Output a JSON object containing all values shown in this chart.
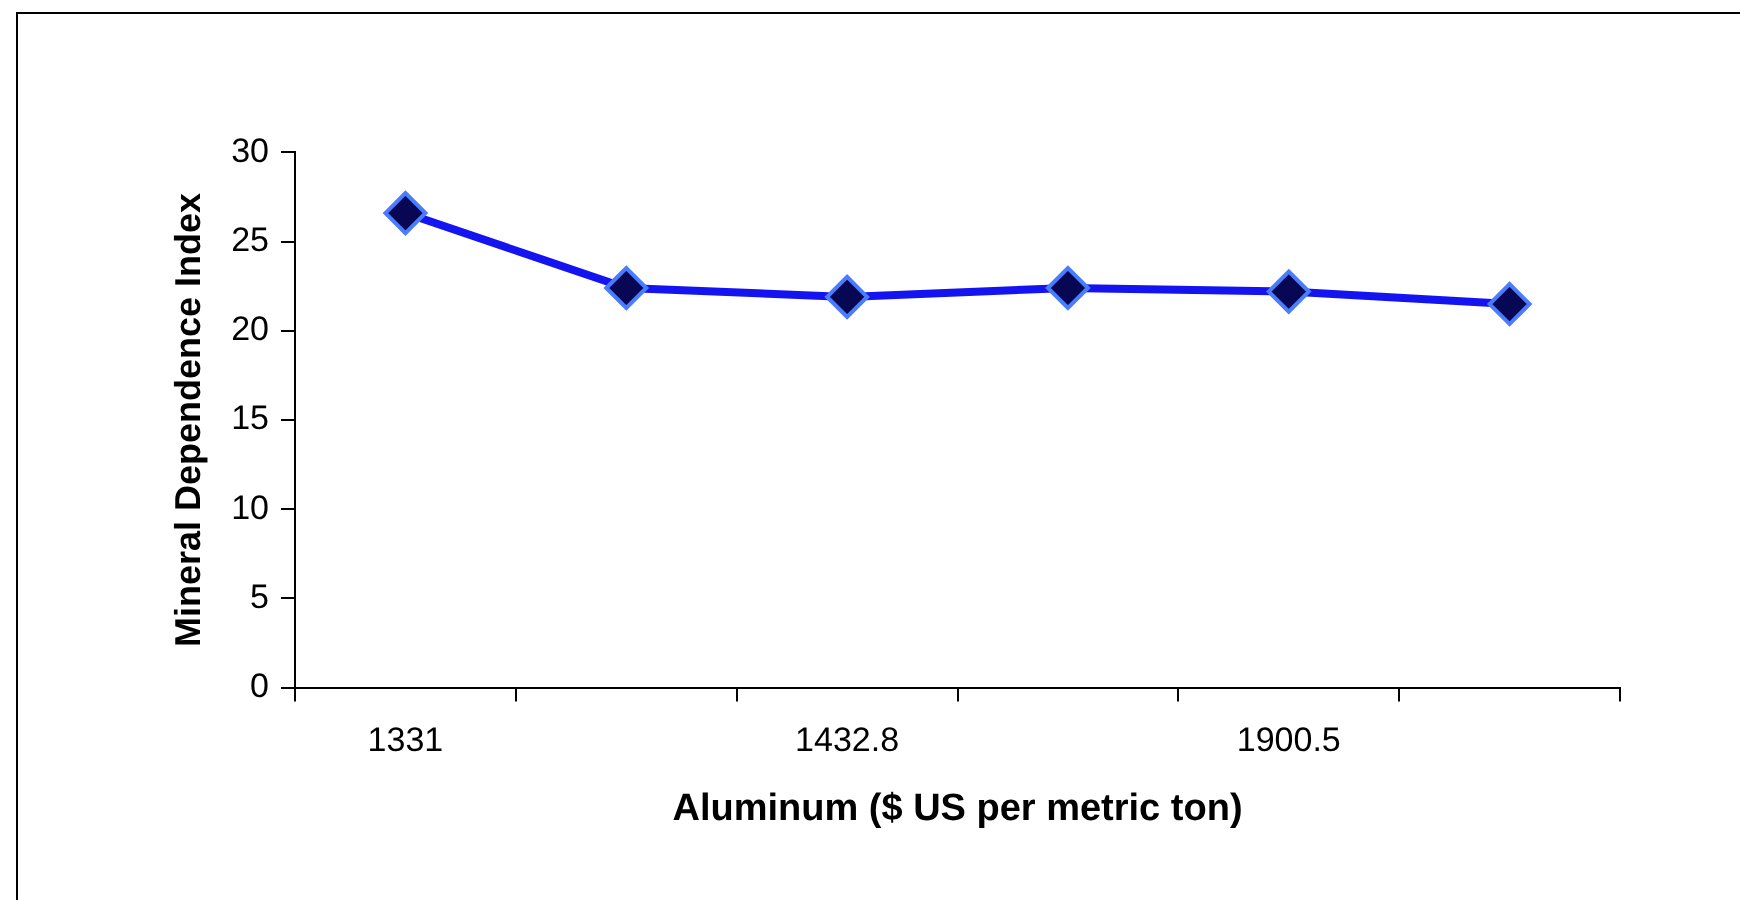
{
  "chart_data": {
    "type": "line",
    "xlabel": "Aluminum ($ US per metric ton)",
    "ylabel": "Mineral Dependence Index",
    "categories": [
      "1331",
      null,
      "1432.8",
      null,
      "1900.5",
      null
    ],
    "series": [
      {
        "color": "#1414f0",
        "values": [
          26.6,
          22.4,
          21.9,
          22.4,
          22.2,
          21.5
        ]
      }
    ],
    "ylim": [
      0,
      30
    ],
    "yticks": [
      0,
      5,
      10,
      15,
      20,
      25,
      30
    ],
    "grid": false,
    "legend": false,
    "marker": "diamond",
    "line_style": "solid"
  }
}
